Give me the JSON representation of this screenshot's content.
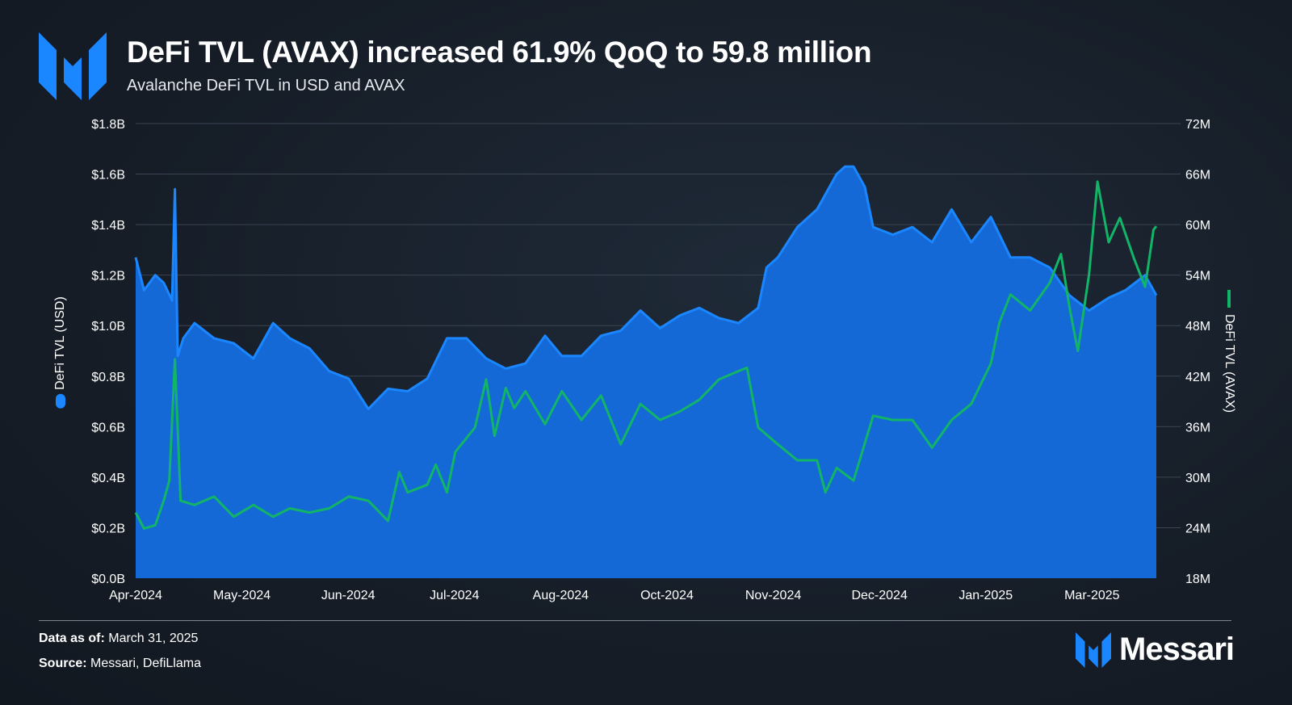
{
  "header": {
    "title": "DeFi TVL (AVAX) increased 61.9% QoQ to 59.8 million",
    "subtitle": "Avalanche DeFi TVL in USD and AVAX"
  },
  "footer": {
    "data_as_of_label": "Data as of:",
    "data_as_of_value": "March 31, 2025",
    "source_label": "Source:",
    "source_value": "Messari, DefiLlama",
    "brand": "Messari"
  },
  "colors": {
    "usd_area": "#1469d6",
    "usd_line": "#1a86ff",
    "avax_line": "#12b567",
    "logo": "#1a86ff"
  },
  "icons": {
    "logo": "messari-m-logo"
  },
  "chart_data": {
    "type": "area+line",
    "title": "DeFi TVL (AVAX) increased 61.9% QoQ to 59.8 million",
    "subtitle": "Avalanche DeFi TVL in USD and AVAX",
    "x_ticks": [
      "Apr-2024",
      "May-2024",
      "Jun-2024",
      "Jul-2024",
      "Aug-2024",
      "Oct-2024",
      "Nov-2024",
      "Dec-2024",
      "Jan-2025",
      "Mar-2025"
    ],
    "x_range": [
      "2024-04-01",
      "2025-03-31"
    ],
    "y_left": {
      "label": "DeFi TVL (USD)",
      "ticks": [
        "$0.0B",
        "$0.2B",
        "$0.4B",
        "$0.6B",
        "$0.8B",
        "$1.0B",
        "$1.2B",
        "$1.4B",
        "$1.6B",
        "$1.8B"
      ],
      "range": [
        0,
        1.8
      ],
      "unit": "B USD"
    },
    "y_right": {
      "label": "DeFi TVL (AVAX)",
      "ticks": [
        "18M",
        "24M",
        "30M",
        "36M",
        "42M",
        "48M",
        "54M",
        "60M",
        "66M",
        "72M"
      ],
      "range": [
        18,
        72
      ],
      "unit": "M AVAX"
    },
    "grid": true,
    "legend": "axis-titles",
    "series": [
      {
        "name": "DeFi TVL (USD)",
        "axis": "left",
        "style": "area",
        "points": [
          [
            "2024-04-01",
            1.27
          ],
          [
            "2024-04-04",
            1.14
          ],
          [
            "2024-04-08",
            1.2
          ],
          [
            "2024-04-11",
            1.17
          ],
          [
            "2024-04-14",
            1.1
          ],
          [
            "2024-04-15",
            1.54
          ],
          [
            "2024-04-16",
            0.88
          ],
          [
            "2024-04-18",
            0.95
          ],
          [
            "2024-04-22",
            1.01
          ],
          [
            "2024-04-29",
            0.95
          ],
          [
            "2024-05-06",
            0.93
          ],
          [
            "2024-05-13",
            0.87
          ],
          [
            "2024-05-20",
            1.01
          ],
          [
            "2024-05-26",
            0.95
          ],
          [
            "2024-06-02",
            0.91
          ],
          [
            "2024-06-09",
            0.82
          ],
          [
            "2024-06-16",
            0.79
          ],
          [
            "2024-06-23",
            0.67
          ],
          [
            "2024-06-30",
            0.75
          ],
          [
            "2024-07-07",
            0.74
          ],
          [
            "2024-07-14",
            0.79
          ],
          [
            "2024-07-21",
            0.95
          ],
          [
            "2024-07-28",
            0.95
          ],
          [
            "2024-08-04",
            0.87
          ],
          [
            "2024-08-11",
            0.83
          ],
          [
            "2024-08-18",
            0.85
          ],
          [
            "2024-08-25",
            0.96
          ],
          [
            "2024-08-31",
            0.88
          ],
          [
            "2024-09-07",
            0.88
          ],
          [
            "2024-09-14",
            0.96
          ],
          [
            "2024-09-21",
            0.98
          ],
          [
            "2024-09-28",
            1.06
          ],
          [
            "2024-10-05",
            0.99
          ],
          [
            "2024-10-12",
            1.04
          ],
          [
            "2024-10-19",
            1.07
          ],
          [
            "2024-10-26",
            1.03
          ],
          [
            "2024-11-02",
            1.01
          ],
          [
            "2024-11-09",
            1.07
          ],
          [
            "2024-11-12",
            1.23
          ],
          [
            "2024-11-16",
            1.27
          ],
          [
            "2024-11-23",
            1.39
          ],
          [
            "2024-11-30",
            1.46
          ],
          [
            "2024-12-07",
            1.6
          ],
          [
            "2024-12-10",
            1.63
          ],
          [
            "2024-12-13",
            1.63
          ],
          [
            "2024-12-17",
            1.55
          ],
          [
            "2024-12-20",
            1.39
          ],
          [
            "2024-12-27",
            1.36
          ],
          [
            "2025-01-03",
            1.39
          ],
          [
            "2025-01-10",
            1.33
          ],
          [
            "2025-01-17",
            1.46
          ],
          [
            "2025-01-24",
            1.33
          ],
          [
            "2025-01-31",
            1.43
          ],
          [
            "2025-02-07",
            1.27
          ],
          [
            "2025-02-14",
            1.27
          ],
          [
            "2025-02-21",
            1.23
          ],
          [
            "2025-02-28",
            1.12
          ],
          [
            "2025-03-07",
            1.06
          ],
          [
            "2025-03-14",
            1.11
          ],
          [
            "2025-03-20",
            1.14
          ],
          [
            "2025-03-27",
            1.2
          ],
          [
            "2025-03-31",
            1.12
          ]
        ]
      },
      {
        "name": "DeFi TVL (AVAX)",
        "axis": "right",
        "style": "line",
        "points": [
          [
            "2024-04-01",
            25.8
          ],
          [
            "2024-04-04",
            23.9
          ],
          [
            "2024-04-08",
            24.3
          ],
          [
            "2024-04-11",
            27.2
          ],
          [
            "2024-04-13",
            29.6
          ],
          [
            "2024-04-15",
            44.0
          ],
          [
            "2024-04-17",
            27.2
          ],
          [
            "2024-04-22",
            26.7
          ],
          [
            "2024-04-29",
            27.7
          ],
          [
            "2024-05-06",
            25.3
          ],
          [
            "2024-05-13",
            26.7
          ],
          [
            "2024-05-20",
            25.3
          ],
          [
            "2024-05-26",
            26.3
          ],
          [
            "2024-06-02",
            25.8
          ],
          [
            "2024-06-09",
            26.3
          ],
          [
            "2024-06-16",
            27.7
          ],
          [
            "2024-06-23",
            27.2
          ],
          [
            "2024-06-30",
            24.8
          ],
          [
            "2024-07-04",
            30.6
          ],
          [
            "2024-07-07",
            28.2
          ],
          [
            "2024-07-14",
            29.1
          ],
          [
            "2024-07-17",
            31.5
          ],
          [
            "2024-07-21",
            28.2
          ],
          [
            "2024-07-24",
            33.0
          ],
          [
            "2024-07-31",
            35.9
          ],
          [
            "2024-08-04",
            41.6
          ],
          [
            "2024-08-07",
            34.9
          ],
          [
            "2024-08-11",
            40.6
          ],
          [
            "2024-08-14",
            38.2
          ],
          [
            "2024-08-18",
            40.2
          ],
          [
            "2024-08-25",
            36.3
          ],
          [
            "2024-08-31",
            40.2
          ],
          [
            "2024-09-07",
            36.8
          ],
          [
            "2024-09-14",
            39.7
          ],
          [
            "2024-09-21",
            33.9
          ],
          [
            "2024-09-28",
            38.7
          ],
          [
            "2024-10-05",
            36.8
          ],
          [
            "2024-10-12",
            37.8
          ],
          [
            "2024-10-19",
            39.2
          ],
          [
            "2024-10-26",
            41.6
          ],
          [
            "2024-11-02",
            42.6
          ],
          [
            "2024-11-05",
            43.0
          ],
          [
            "2024-11-09",
            35.9
          ],
          [
            "2024-11-16",
            33.9
          ],
          [
            "2024-11-23",
            32.0
          ],
          [
            "2024-11-30",
            32.0
          ],
          [
            "2024-12-03",
            28.2
          ],
          [
            "2024-12-07",
            31.1
          ],
          [
            "2024-12-13",
            29.6
          ],
          [
            "2024-12-20",
            37.3
          ],
          [
            "2024-12-27",
            36.8
          ],
          [
            "2025-01-03",
            36.8
          ],
          [
            "2025-01-10",
            33.5
          ],
          [
            "2025-01-17",
            36.8
          ],
          [
            "2025-01-24",
            38.7
          ],
          [
            "2025-01-31",
            43.5
          ],
          [
            "2025-02-03",
            48.3
          ],
          [
            "2025-02-07",
            51.7
          ],
          [
            "2025-02-14",
            49.8
          ],
          [
            "2025-02-21",
            53.1
          ],
          [
            "2025-02-25",
            56.5
          ],
          [
            "2025-02-28",
            50.2
          ],
          [
            "2025-03-03",
            45.0
          ],
          [
            "2025-03-07",
            54.1
          ],
          [
            "2025-03-10",
            65.1
          ],
          [
            "2025-03-14",
            57.9
          ],
          [
            "2025-03-18",
            60.8
          ],
          [
            "2025-03-23",
            56.0
          ],
          [
            "2025-03-27",
            52.6
          ],
          [
            "2025-03-30",
            59.4
          ],
          [
            "2025-03-31",
            59.8
          ]
        ]
      }
    ]
  }
}
